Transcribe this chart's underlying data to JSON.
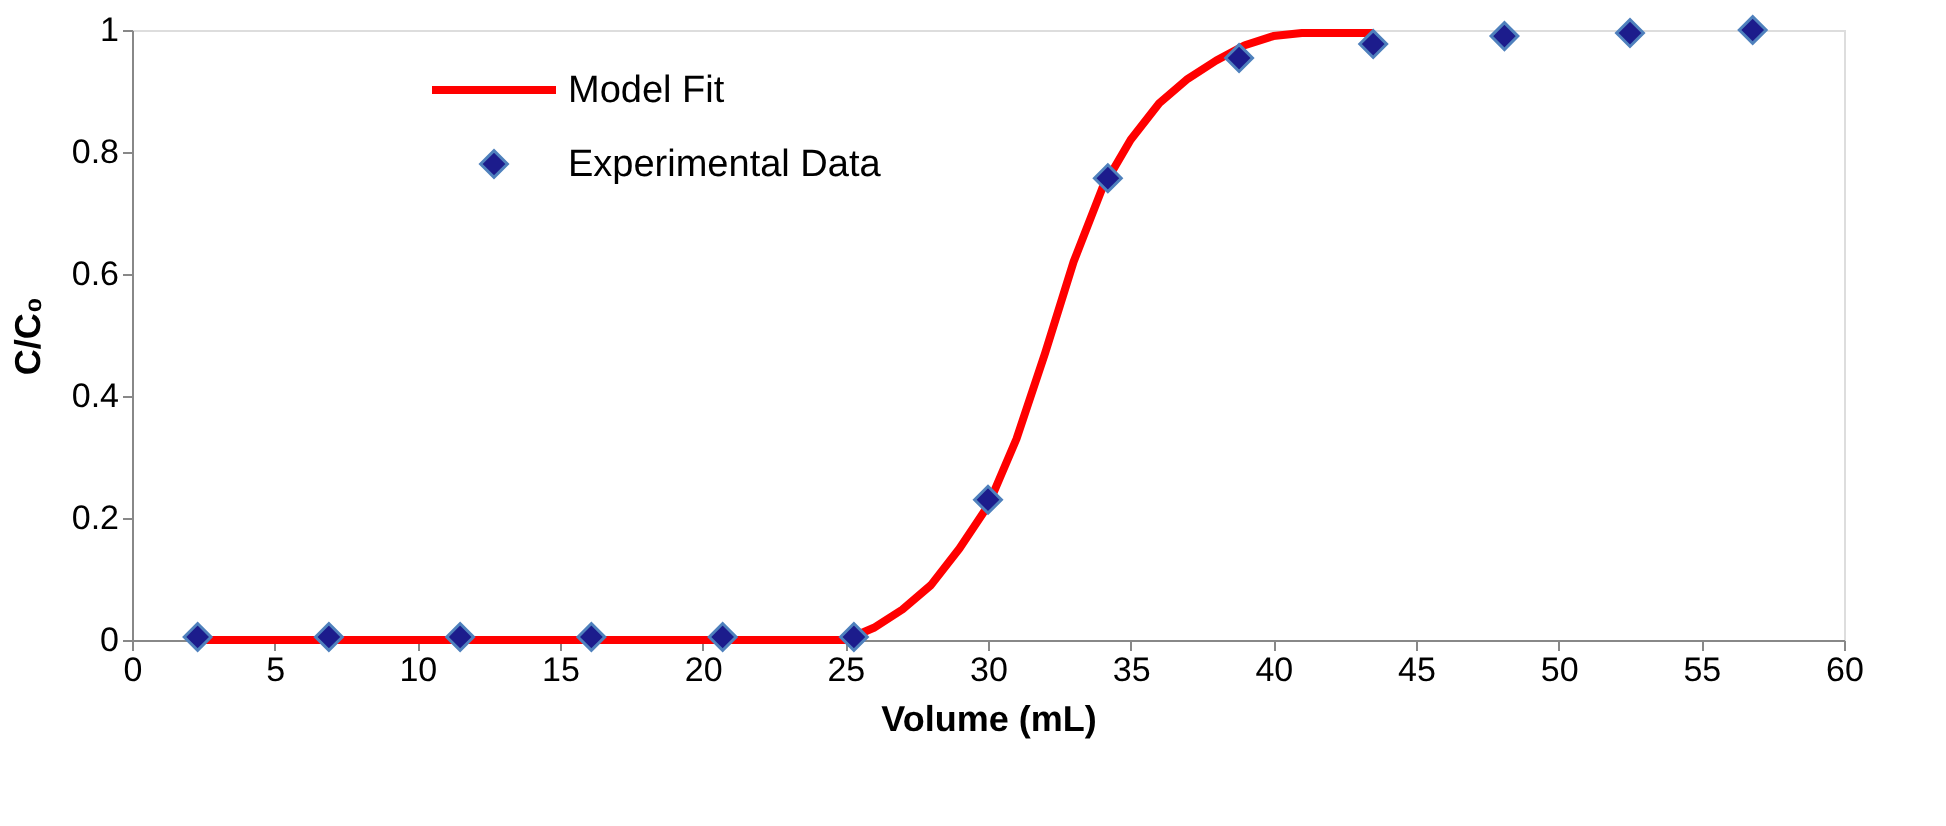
{
  "chart_data": {
    "type": "scatter",
    "xlabel": "Volume (mL)",
    "ylabel": "C/C₀",
    "xlim": [
      0,
      60
    ],
    "xticks": [
      0,
      5,
      10,
      15,
      20,
      25,
      30,
      35,
      40,
      45,
      50,
      55,
      60
    ],
    "ylim": [
      0,
      1
    ],
    "yticks": [
      0,
      0.2,
      0.4,
      0.6,
      0.8,
      1
    ],
    "grid": false,
    "legend": "top left",
    "series": [
      {
        "name": "Model Fit",
        "type": "line",
        "color": "#ff0000",
        "marker": "none",
        "line_style": "solid",
        "x": [
          2.3,
          6,
          10,
          14,
          18,
          21,
          22.5,
          24,
          25,
          26,
          27,
          28,
          29,
          30,
          31,
          32,
          33,
          34,
          35,
          36,
          37,
          38,
          39,
          40,
          41,
          42,
          43.5
        ],
        "values": [
          0,
          0,
          0,
          0,
          0,
          0,
          0,
          0,
          0,
          0.02,
          0.05,
          0.09,
          0.15,
          0.22,
          0.33,
          0.47,
          0.62,
          0.74,
          0.82,
          0.88,
          0.92,
          0.95,
          0.975,
          0.99,
          0.995,
          0.995,
          0.995
        ]
      },
      {
        "name": "Experimental Data",
        "color": "#1c1c8c",
        "marker": "diamond",
        "x": [
          2.3,
          6.9,
          11.5,
          16.1,
          20.7,
          25.3,
          30.0,
          34.2,
          38.8,
          43.5,
          48.1,
          52.5,
          56.8
        ],
        "values": [
          0.005,
          0.005,
          0.005,
          0.005,
          0.005,
          0.005,
          0.23,
          0.757,
          0.954,
          0.977,
          0.99,
          0.995,
          1.0
        ]
      }
    ]
  }
}
